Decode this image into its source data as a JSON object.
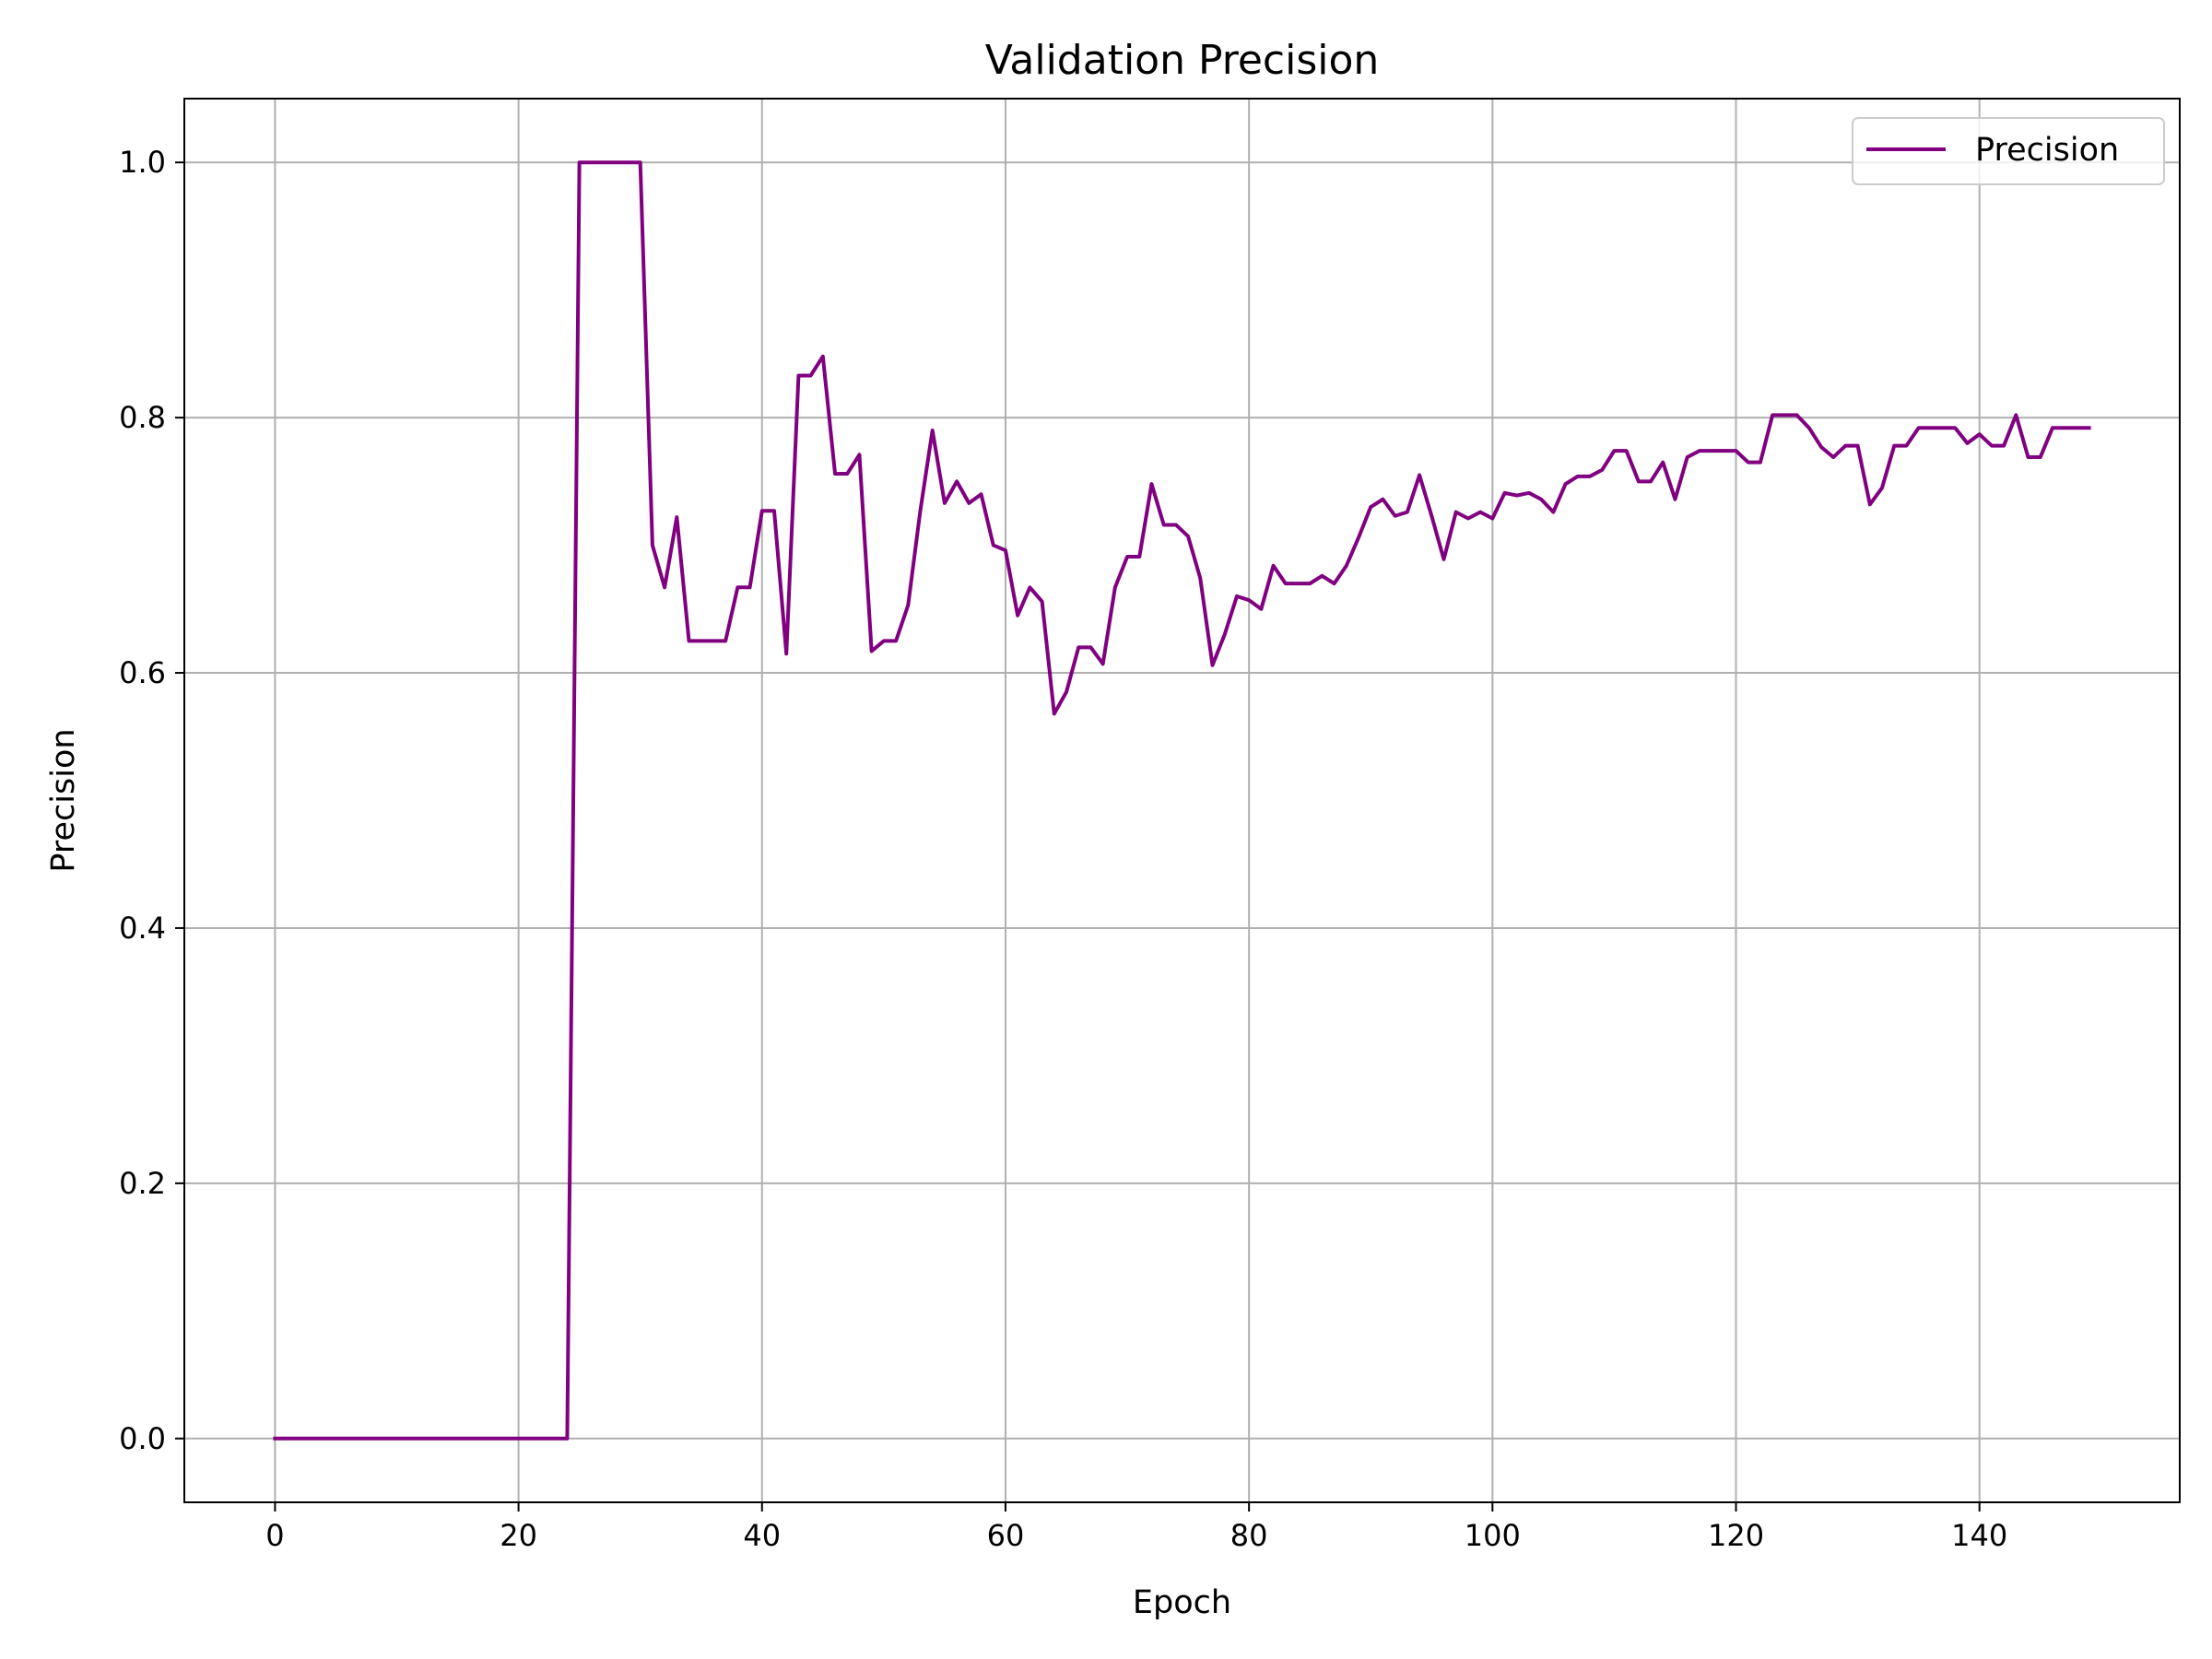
{
  "chart_data": {
    "type": "line",
    "title": "Validation Precision",
    "xlabel": "Epoch",
    "ylabel": "Precision",
    "xlim": [
      -7.45,
      156.45
    ],
    "ylim": [
      -0.05,
      1.05
    ],
    "xticks": [
      0,
      20,
      40,
      60,
      80,
      100,
      120,
      140
    ],
    "yticks": [
      0.0,
      0.2,
      0.4,
      0.6,
      0.8,
      1.0
    ],
    "xtick_labels": [
      "0",
      "20",
      "40",
      "60",
      "80",
      "100",
      "120",
      "140"
    ],
    "ytick_labels": [
      "0.0",
      "0.2",
      "0.4",
      "0.6",
      "0.8",
      "1.0"
    ],
    "grid": true,
    "legend_position": "upper right",
    "series": [
      {
        "name": "Precision",
        "color": "#800080",
        "x": [
          0,
          1,
          2,
          3,
          4,
          5,
          6,
          7,
          8,
          9,
          10,
          11,
          12,
          13,
          14,
          15,
          16,
          17,
          18,
          19,
          20,
          21,
          22,
          23,
          24,
          25,
          26,
          27,
          28,
          29,
          30,
          31,
          32,
          33,
          34,
          35,
          36,
          37,
          38,
          39,
          40,
          41,
          42,
          43,
          44,
          45,
          46,
          47,
          48,
          49,
          50,
          51,
          52,
          53,
          54,
          55,
          56,
          57,
          58,
          59,
          60,
          61,
          62,
          63,
          64,
          65,
          66,
          67,
          68,
          69,
          70,
          71,
          72,
          73,
          74,
          75,
          76,
          77,
          78,
          79,
          80,
          81,
          82,
          83,
          84,
          85,
          86,
          87,
          88,
          89,
          90,
          91,
          92,
          93,
          94,
          95,
          96,
          97,
          98,
          99,
          100,
          101,
          102,
          103,
          104,
          105,
          106,
          107,
          108,
          109,
          110,
          111,
          112,
          113,
          114,
          115,
          116,
          117,
          118,
          119,
          120,
          121,
          122,
          123,
          124,
          125,
          126,
          127,
          128,
          129,
          130,
          131,
          132,
          133,
          134,
          135,
          136,
          137,
          138,
          139,
          140,
          141,
          142,
          143,
          144,
          145,
          146,
          147,
          148,
          149
        ],
        "y": [
          0,
          0,
          0,
          0,
          0,
          0,
          0,
          0,
          0,
          0,
          0,
          0,
          0,
          0,
          0,
          0,
          0,
          0,
          0,
          0,
          0,
          0,
          0,
          0,
          0,
          1.0,
          1.0,
          1.0,
          1.0,
          1.0,
          1.0,
          0.7,
          0.667,
          0.722,
          0.625,
          0.625,
          0.625,
          0.625,
          0.667,
          0.667,
          0.727,
          0.727,
          0.615,
          0.833,
          0.833,
          0.848,
          0.756,
          0.756,
          0.771,
          0.617,
          0.625,
          0.625,
          0.653,
          0.727,
          0.79,
          0.733,
          0.75,
          0.733,
          0.74,
          0.7,
          0.696,
          0.645,
          0.667,
          0.656,
          0.568,
          0.585,
          0.62,
          0.62,
          0.607,
          0.667,
          0.691,
          0.691,
          0.748,
          0.716,
          0.716,
          0.707,
          0.674,
          0.606,
          0.63,
          0.66,
          0.657,
          0.65,
          0.684,
          0.67,
          0.67,
          0.67,
          0.676,
          0.67,
          0.684,
          0.706,
          0.73,
          0.736,
          0.723,
          0.726,
          0.755,
          0.723,
          0.689,
          0.726,
          0.721,
          0.726,
          0.721,
          0.741,
          0.739,
          0.741,
          0.736,
          0.726,
          0.748,
          0.754,
          0.754,
          0.759,
          0.774,
          0.774,
          0.75,
          0.75,
          0.765,
          0.736,
          0.769,
          0.774,
          0.774,
          0.774,
          0.774,
          0.765,
          0.765,
          0.802,
          0.802,
          0.802,
          0.792,
          0.777,
          0.769,
          0.778,
          0.778,
          0.732,
          0.745,
          0.778,
          0.778,
          0.792,
          0.792,
          0.792,
          0.792,
          0.78,
          0.787,
          0.778,
          0.778,
          0.802,
          0.769,
          0.769,
          0.792,
          0.792,
          0.792,
          0.792
        ]
      }
    ]
  }
}
